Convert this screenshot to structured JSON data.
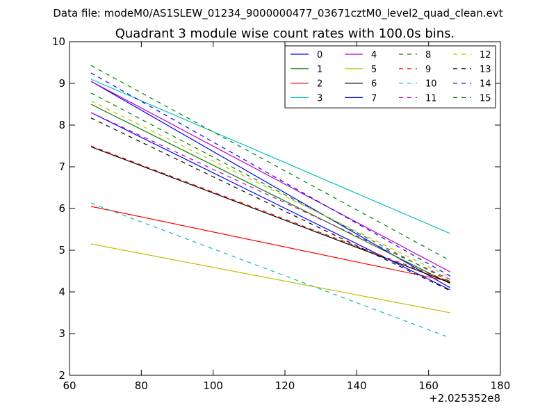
{
  "chart_data": {
    "type": "line",
    "suptitle": "Data file: modeM0/AS1SLEW_01234_9000000477_03671cztM0_level2_quad_clean.evt",
    "title": "Quadrant 3 module wise count rates with 100.0s bins.",
    "xlabel": "",
    "ylabel": "",
    "xlim": [
      60,
      180
    ],
    "ylim": [
      2,
      10
    ],
    "xticks": [
      60,
      80,
      100,
      120,
      140,
      160,
      180
    ],
    "yticks": [
      2,
      3,
      4,
      5,
      6,
      7,
      8,
      9,
      10
    ],
    "x_offset_label": "+2.025352e8",
    "grid": false,
    "legend_position": "top-right",
    "legend_columns": 4,
    "x": [
      66,
      166
    ],
    "series": [
      {
        "name": "0",
        "color": "#0000ff",
        "dashed": false,
        "values": [
          9.05,
          4.1
        ]
      },
      {
        "name": "1",
        "color": "#008000",
        "dashed": false,
        "values": [
          8.5,
          4.2
        ]
      },
      {
        "name": "2",
        "color": "#ff0000",
        "dashed": false,
        "values": [
          6.05,
          4.25
        ]
      },
      {
        "name": "3",
        "color": "#00bfbf",
        "dashed": false,
        "values": [
          9.1,
          5.4
        ]
      },
      {
        "name": "4",
        "color": "#bf00bf",
        "dashed": false,
        "values": [
          9.05,
          4.48
        ]
      },
      {
        "name": "5",
        "color": "#bfbf00",
        "dashed": false,
        "values": [
          5.15,
          3.5
        ]
      },
      {
        "name": "6",
        "color": "#000000",
        "dashed": false,
        "values": [
          7.48,
          4.22
        ]
      },
      {
        "name": "7",
        "color": "#0000ff",
        "dashed": false,
        "values": [
          8.3,
          4.05
        ]
      },
      {
        "name": "8",
        "color": "#008000",
        "dashed": true,
        "values": [
          9.43,
          4.75
        ]
      },
      {
        "name": "9",
        "color": "#ff0000",
        "dashed": true,
        "values": [
          7.5,
          4.25
        ]
      },
      {
        "name": "10",
        "color": "#00bfbf",
        "dashed": true,
        "values": [
          6.13,
          2.9
        ]
      },
      {
        "name": "11",
        "color": "#bf00bf",
        "dashed": true,
        "values": [
          8.3,
          4.3
        ]
      },
      {
        "name": "12",
        "color": "#bfbf00",
        "dashed": true,
        "values": [
          8.58,
          4.35
        ]
      },
      {
        "name": "13",
        "color": "#000000",
        "dashed": true,
        "values": [
          8.17,
          4.03
        ]
      },
      {
        "name": "14",
        "color": "#0000ff",
        "dashed": true,
        "values": [
          9.25,
          4.38
        ]
      },
      {
        "name": "15",
        "color": "#008000",
        "dashed": true,
        "values": [
          8.77,
          4.25
        ]
      }
    ]
  }
}
